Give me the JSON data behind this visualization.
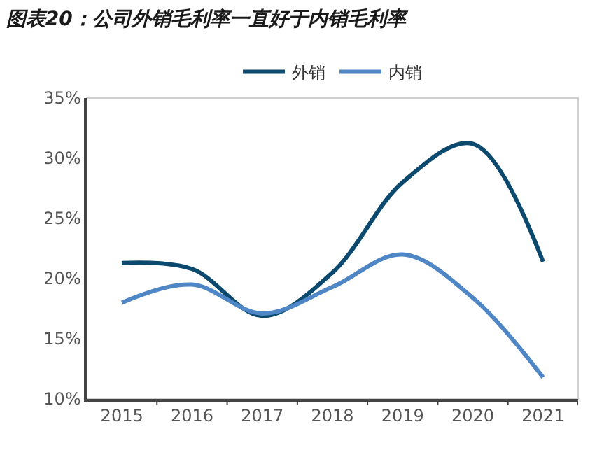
{
  "chart_data": {
    "type": "line",
    "title": "图表20：公司外销毛利率一直好于内销毛利率",
    "categories": [
      "2015",
      "2016",
      "2017",
      "2018",
      "2019",
      "2020",
      "2021"
    ],
    "series": [
      {
        "name": "外销",
        "color": "#0b4a6e",
        "values": [
          21.3,
          20.8,
          16.9,
          20.5,
          28.0,
          31.2,
          21.4
        ]
      },
      {
        "name": "内销",
        "color": "#4f87c6",
        "values": [
          18.0,
          19.5,
          17.1,
          19.3,
          22.0,
          18.4,
          11.8
        ]
      }
    ],
    "ylim": [
      10,
      35
    ],
    "yticks": [
      {
        "value": 10,
        "label": "10%"
      },
      {
        "value": 15,
        "label": "15%"
      },
      {
        "value": 20,
        "label": "20%"
      },
      {
        "value": 25,
        "label": "25%"
      },
      {
        "value": 30,
        "label": "30%"
      },
      {
        "value": 35,
        "label": "35%"
      }
    ],
    "grid": false,
    "legend": "top",
    "marker": "none",
    "line_style": "solid"
  }
}
